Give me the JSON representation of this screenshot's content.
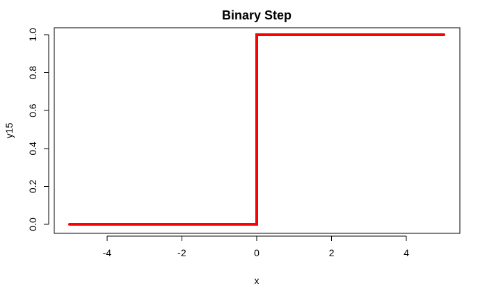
{
  "chart_data": {
    "type": "line",
    "title": "Binary Step",
    "xlabel": "x",
    "ylabel": "y15",
    "xlim": [
      -5,
      5
    ],
    "ylim": [
      0,
      1
    ],
    "xticks": [
      -4,
      -2,
      0,
      2,
      4
    ],
    "yticks": [
      0.0,
      0.2,
      0.4,
      0.6,
      0.8,
      1.0
    ],
    "xtick_labels": [
      "-4",
      "-2",
      "0",
      "2",
      "4"
    ],
    "ytick_labels": [
      "0.0",
      "0.2",
      "0.4",
      "0.6",
      "0.8",
      "1.0"
    ],
    "grid": false,
    "legend": "none",
    "series": [
      {
        "color": "#ff0000",
        "x": [
          -5,
          0,
          0,
          5
        ],
        "y": [
          0,
          0,
          1,
          1
        ]
      }
    ]
  }
}
